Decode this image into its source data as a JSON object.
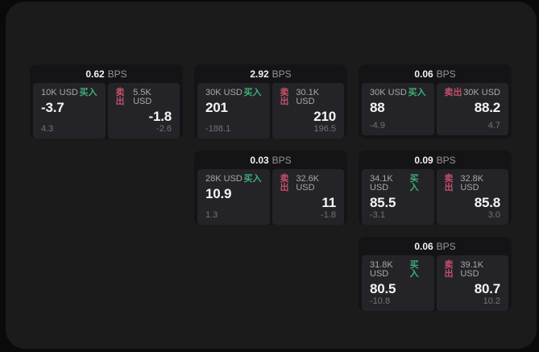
{
  "labels": {
    "buy": "买入",
    "sell": "卖出",
    "unit": "BPS"
  },
  "colors": {
    "buy_green": "#3fae76",
    "sell_red": "#c4506c",
    "window_bg": "#1b1b1c",
    "card_bg": "#141417",
    "panel_bg": "#242428"
  },
  "cards": [
    {
      "bps": "0.62",
      "buy": {
        "amount": "10K USD",
        "value": "-3.7",
        "sub": "4.3"
      },
      "sell": {
        "amount": "5.5K USD",
        "value": "-1.8",
        "sub": "-2.6"
      }
    },
    {
      "bps": "2.92",
      "buy": {
        "amount": "30K USD",
        "value": "201",
        "sub": "-188.1"
      },
      "sell": {
        "amount": "30.1K USD",
        "value": "210",
        "sub": "196.5"
      }
    },
    {
      "bps": "0.06",
      "buy": {
        "amount": "30K USD",
        "value": "88",
        "sub": "-4.9"
      },
      "sell": {
        "amount": "30K USD",
        "value": "88.2",
        "sub": "4.7"
      }
    },
    {
      "bps": "0.03",
      "buy": {
        "amount": "28K USD",
        "value": "10.9",
        "sub": "1.3"
      },
      "sell": {
        "amount": "32.6K USD",
        "value": "11",
        "sub": "-1.8"
      }
    },
    {
      "bps": "0.09",
      "buy": {
        "amount": "34.1K USD",
        "value": "85.5",
        "sub": "-3.1"
      },
      "sell": {
        "amount": "32.8K USD",
        "value": "85.8",
        "sub": "3.0"
      }
    },
    {
      "bps": "0.06",
      "buy": {
        "amount": "31.8K USD",
        "value": "80.5",
        "sub": "-10.8"
      },
      "sell": {
        "amount": "39.1K USD",
        "value": "80.7",
        "sub": "10.2"
      }
    }
  ]
}
